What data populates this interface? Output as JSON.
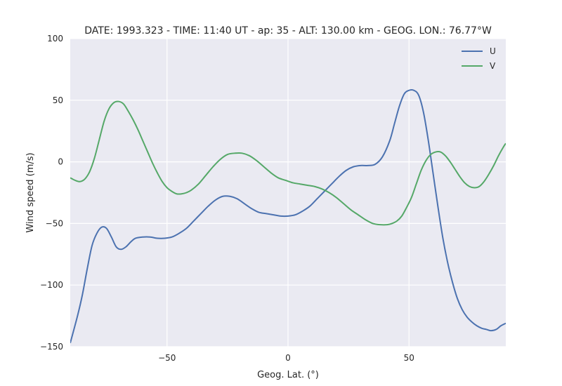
{
  "chart_data": {
    "type": "line",
    "title": "DATE: 1993.323 - TIME: 11:40 UT - ap:  35 - ALT:  130.00 km - GEOG. LON.:  76.77°W",
    "xlabel": "Geog. Lat. (°)",
    "ylabel": "Wind speed (m/s)",
    "xlim": [
      -90,
      90
    ],
    "ylim": [
      -150,
      100
    ],
    "xticks": [
      -50,
      0,
      50
    ],
    "yticks": [
      -150,
      -100,
      -50,
      0,
      50,
      100
    ],
    "xtick_labels": [
      "−50",
      "0",
      "50"
    ],
    "ytick_labels": [
      "−150",
      "−100",
      "−50",
      "0",
      "50",
      "100"
    ],
    "grid": true,
    "background": "#eaeaf2",
    "legend_position": "top-right",
    "series": [
      {
        "name": "U",
        "color": "#4c72b0",
        "x": [
          -90,
          -87,
          -85,
          -83,
          -81,
          -79,
          -77,
          -75,
          -73,
          -71,
          -69,
          -67,
          -65,
          -63,
          -60,
          -57,
          -54,
          -51,
          -48,
          -45,
          -42,
          -39,
          -36,
          -33,
          -30,
          -27,
          -24,
          -21,
          -18,
          -15,
          -12,
          -9,
          -6,
          -3,
          0,
          3,
          6,
          9,
          12,
          15,
          18,
          21,
          24,
          27,
          30,
          33,
          36,
          39,
          42,
          44,
          46,
          48,
          50,
          52,
          54,
          56,
          58,
          60,
          62,
          64,
          66,
          68,
          70,
          72,
          74,
          76,
          78,
          80,
          82,
          84,
          86,
          88,
          90
        ],
        "values": [
          -147,
          -125,
          -108,
          -87,
          -68,
          -58,
          -53,
          -54,
          -61,
          -69,
          -71,
          -69,
          -65,
          -62,
          -61,
          -61,
          -62,
          -62,
          -61,
          -58,
          -54,
          -48,
          -42,
          -36,
          -31,
          -28,
          -28,
          -30,
          -34,
          -38,
          -41,
          -42,
          -43,
          -44,
          -44,
          -43,
          -40,
          -36,
          -30,
          -24,
          -18,
          -12,
          -7,
          -4,
          -3,
          -3,
          -2,
          4,
          17,
          31,
          45,
          55,
          58,
          58,
          54,
          40,
          17,
          -10,
          -37,
          -62,
          -82,
          -98,
          -111,
          -120,
          -126,
          -130,
          -133,
          -135,
          -136,
          -137,
          -136,
          -133,
          -131
        ]
      },
      {
        "name": "V",
        "color": "#55a868",
        "x": [
          -90,
          -88,
          -86,
          -84,
          -82,
          -80,
          -78,
          -76,
          -74,
          -72,
          -70,
          -68,
          -66,
          -64,
          -62,
          -60,
          -58,
          -56,
          -54,
          -52,
          -50,
          -48,
          -46,
          -44,
          -42,
          -40,
          -37,
          -34,
          -31,
          -28,
          -25,
          -22,
          -19,
          -16,
          -13,
          -10,
          -7,
          -4,
          -1,
          2,
          5,
          8,
          11,
          14,
          17,
          20,
          23,
          26,
          29,
          32,
          35,
          38,
          41,
          43,
          45,
          47,
          49,
          51,
          53,
          55,
          57,
          59,
          61,
          63,
          65,
          67,
          69,
          71,
          73,
          75,
          77,
          79,
          81,
          83,
          85,
          87,
          89,
          90
        ],
        "values": [
          -13,
          -15,
          -16,
          -14,
          -8,
          3,
          18,
          33,
          43,
          48,
          49,
          47,
          41,
          34,
          26,
          17,
          8,
          -1,
          -9,
          -16,
          -21,
          -24,
          -26,
          -26,
          -25,
          -23,
          -18,
          -11,
          -4,
          2,
          6,
          7,
          7,
          5,
          1,
          -4,
          -9,
          -13,
          -15,
          -17,
          -18,
          -19,
          -20,
          -22,
          -25,
          -29,
          -34,
          -39,
          -43,
          -47,
          -50,
          -51,
          -51,
          -50,
          -48,
          -44,
          -37,
          -29,
          -18,
          -7,
          1,
          6,
          8,
          8,
          5,
          0,
          -6,
          -12,
          -17,
          -20,
          -21,
          -20,
          -16,
          -10,
          -3,
          5,
          12,
          15
        ]
      }
    ]
  }
}
